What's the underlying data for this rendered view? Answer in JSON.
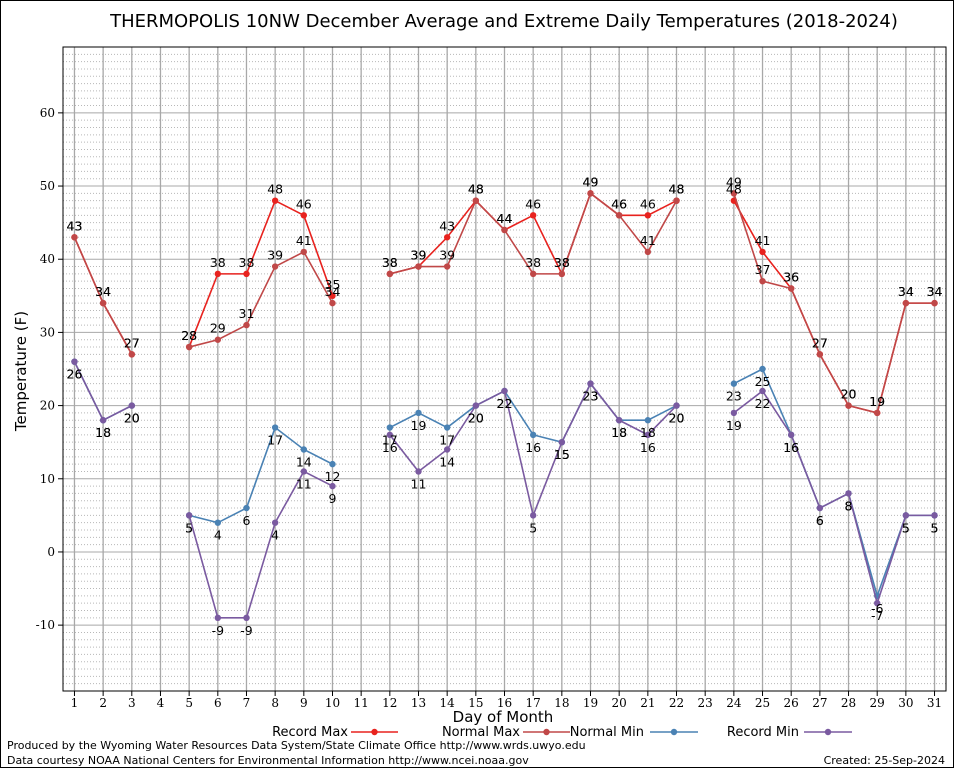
{
  "chart_data": {
    "type": "line",
    "title": "THERMOPOLIS 10NW December Average and Extreme Daily Temperatures (2018-2024)",
    "xlabel": "Day of Month",
    "ylabel": "Temperature (F)",
    "xlim": [
      0.6,
      31.4
    ],
    "ylim": [
      -19,
      69
    ],
    "yticks": [
      -10,
      0,
      10,
      20,
      30,
      40,
      50,
      60
    ],
    "x": [
      1,
      2,
      3,
      4,
      5,
      6,
      7,
      8,
      9,
      10,
      11,
      12,
      13,
      14,
      15,
      16,
      17,
      18,
      19,
      20,
      21,
      22,
      23,
      24,
      25,
      26,
      27,
      28,
      29,
      30,
      31
    ],
    "grid": true,
    "series": [
      {
        "name": "Record Max",
        "color": "#e8221e",
        "values": [
          43,
          34,
          27,
          null,
          28,
          38,
          38,
          48,
          46,
          35,
          null,
          38,
          39,
          43,
          48,
          44,
          46,
          38,
          49,
          46,
          46,
          48,
          null,
          48,
          41,
          36,
          27,
          20,
          19,
          34,
          34
        ]
      },
      {
        "name": "Normal Max",
        "color": "#c04848",
        "values": [
          43,
          34,
          27,
          null,
          28,
          29,
          31,
          39,
          41,
          34,
          null,
          38,
          39,
          39,
          48,
          44,
          38,
          38,
          49,
          46,
          41,
          48,
          null,
          49,
          37,
          36,
          27,
          20,
          19,
          34,
          34
        ]
      },
      {
        "name": "Normal Min",
        "color": "#4a82b4",
        "values": [
          26,
          18,
          20,
          null,
          5,
          4,
          6,
          17,
          14,
          12,
          null,
          17,
          19,
          17,
          20,
          22,
          16,
          15,
          23,
          18,
          18,
          20,
          null,
          23,
          25,
          16,
          6,
          8,
          -6,
          5,
          5
        ]
      },
      {
        "name": "Record Min",
        "color": "#7a5aa0",
        "values": [
          26,
          18,
          20,
          null,
          5,
          -9,
          -9,
          4,
          11,
          9,
          null,
          16,
          11,
          14,
          20,
          22,
          5,
          15,
          23,
          18,
          16,
          20,
          null,
          19,
          22,
          16,
          6,
          8,
          -7,
          5,
          5
        ]
      }
    ],
    "legend_position": "bottom"
  },
  "footer": {
    "produced_by": "Produced by the Wyoming Water Resources Data System/State Climate Office http://www.wrds.uwyo.edu",
    "courtesy": "Data courtesy NOAA National Centers for Environmental Information http://www.ncei.noaa.gov",
    "created": "Created:  25-Sep-2024"
  }
}
